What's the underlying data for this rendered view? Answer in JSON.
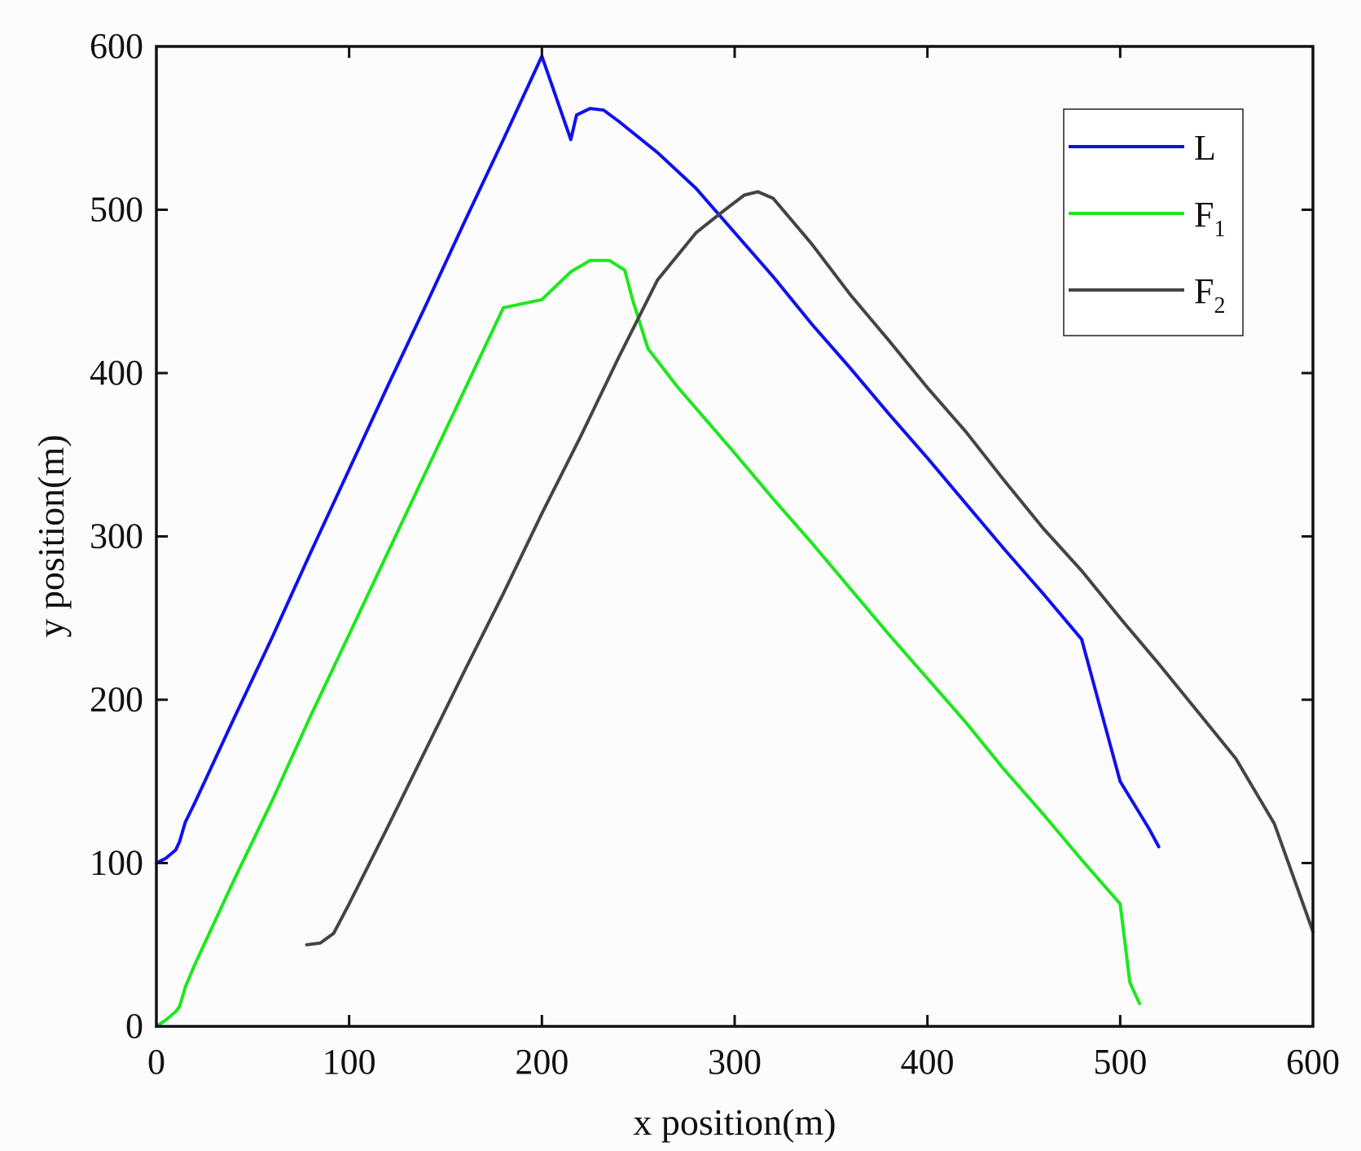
{
  "chart_data": {
    "type": "line",
    "title": "",
    "xlabel": "x position(m)",
    "ylabel": "y position(m)",
    "xlim": [
      0,
      600
    ],
    "ylim": [
      0,
      600
    ],
    "xticks": [
      "0",
      "100",
      "200",
      "300",
      "400",
      "500",
      "600"
    ],
    "yticks": [
      "0",
      "100",
      "200",
      "300",
      "400",
      "500",
      "600"
    ],
    "grid": false,
    "legend_position": "top-right",
    "series": [
      {
        "name": "L",
        "color": "#1010ee",
        "points": [
          [
            0,
            100
          ],
          [
            5,
            103
          ],
          [
            10,
            108
          ],
          [
            12,
            113
          ],
          [
            15,
            125
          ],
          [
            20,
            137
          ],
          [
            40,
            188
          ],
          [
            60,
            238
          ],
          [
            80,
            290
          ],
          [
            100,
            341
          ],
          [
            120,
            392
          ],
          [
            140,
            442
          ],
          [
            160,
            493
          ],
          [
            180,
            543
          ],
          [
            200,
            594
          ],
          [
            215,
            543
          ],
          [
            218,
            558
          ],
          [
            225,
            562
          ],
          [
            232,
            561
          ],
          [
            240,
            554
          ],
          [
            260,
            535
          ],
          [
            280,
            513
          ],
          [
            300,
            486
          ],
          [
            320,
            459
          ],
          [
            340,
            430
          ],
          [
            360,
            403
          ],
          [
            380,
            375
          ],
          [
            400,
            348
          ],
          [
            420,
            320
          ],
          [
            440,
            292
          ],
          [
            460,
            265
          ],
          [
            480,
            237
          ],
          [
            500,
            150
          ],
          [
            515,
            121
          ],
          [
            520,
            110
          ]
        ]
      },
      {
        "name": "F1",
        "color": "#1ce81c",
        "points": [
          [
            0,
            0
          ],
          [
            5,
            4
          ],
          [
            10,
            9
          ],
          [
            12,
            12
          ],
          [
            15,
            24
          ],
          [
            20,
            38
          ],
          [
            40,
            89
          ],
          [
            60,
            138
          ],
          [
            80,
            190
          ],
          [
            100,
            240
          ],
          [
            120,
            290
          ],
          [
            140,
            340
          ],
          [
            160,
            390
          ],
          [
            180,
            440
          ],
          [
            200,
            445
          ],
          [
            215,
            462
          ],
          [
            225,
            469
          ],
          [
            235,
            469
          ],
          [
            243,
            463
          ],
          [
            247,
            445
          ],
          [
            255,
            415
          ],
          [
            270,
            392
          ],
          [
            300,
            351
          ],
          [
            320,
            323
          ],
          [
            340,
            296
          ],
          [
            360,
            268
          ],
          [
            380,
            240
          ],
          [
            400,
            213
          ],
          [
            420,
            186
          ],
          [
            440,
            157
          ],
          [
            460,
            130
          ],
          [
            480,
            102
          ],
          [
            500,
            75
          ],
          [
            505,
            27
          ],
          [
            510,
            14
          ]
        ]
      },
      {
        "name": "F2",
        "color": "#444444",
        "points": [
          [
            78,
            50
          ],
          [
            85,
            51
          ],
          [
            92,
            57
          ],
          [
            100,
            75
          ],
          [
            120,
            122
          ],
          [
            140,
            170
          ],
          [
            160,
            218
          ],
          [
            180,
            265
          ],
          [
            200,
            314
          ],
          [
            220,
            361
          ],
          [
            240,
            410
          ],
          [
            260,
            457
          ],
          [
            280,
            486
          ],
          [
            295,
            500
          ],
          [
            305,
            509
          ],
          [
            312,
            511
          ],
          [
            320,
            507
          ],
          [
            340,
            479
          ],
          [
            360,
            448
          ],
          [
            380,
            420
          ],
          [
            400,
            391
          ],
          [
            420,
            364
          ],
          [
            440,
            334
          ],
          [
            460,
            305
          ],
          [
            480,
            279
          ],
          [
            500,
            250
          ],
          [
            520,
            222
          ],
          [
            540,
            193
          ],
          [
            560,
            164
          ],
          [
            580,
            124
          ],
          [
            600,
            58
          ]
        ]
      }
    ]
  },
  "legend": {
    "items": [
      {
        "main": "L",
        "sub": "",
        "color": "#1010ee"
      },
      {
        "main": "F",
        "sub": "1",
        "color": "#1ce81c"
      },
      {
        "main": "F",
        "sub": "2",
        "color": "#444444"
      }
    ]
  }
}
